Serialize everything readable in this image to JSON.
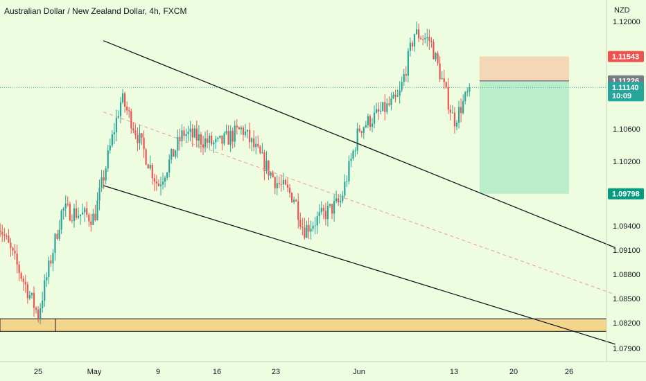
{
  "header": {
    "title": "Australian Dollar / New Zealand Dollar, 4h, FXCM"
  },
  "price_axis": {
    "currency": "NZD",
    "ticks": [
      "1.12000",
      "1.10600",
      "1.10200",
      "1.09400",
      "1.09100",
      "1.08800",
      "1.08500",
      "1.08200",
      "1.07900"
    ]
  },
  "tags": [
    {
      "value": "1.11543",
      "color": "#ef5350"
    },
    {
      "value": "1.11226",
      "color": "#787b86"
    },
    {
      "value": "1.11140",
      "time": "10:09",
      "color": "#26a69a"
    },
    {
      "value": "1.09798",
      "color": "#089981"
    }
  ],
  "time_axis": {
    "labels": [
      "25",
      "May",
      "9",
      "16",
      "23",
      "Jun",
      "13",
      "20",
      "26"
    ]
  },
  "colors": {
    "background": "#eefcdf",
    "up": "#26a69a",
    "down": "#ef5350",
    "stop_zone": "#f3d3b3",
    "target_zone": "#b5ebc8",
    "support_zone": "#f3d68c"
  },
  "chart_data": {
    "type": "candlestick",
    "symbol": "AUDNZD",
    "interval": "4h",
    "source": "FXCM",
    "y_range": [
      1.0775,
      1.1225
    ],
    "last_price": 1.1114,
    "anchors": [
      {
        "date": "2022-04-20",
        "close": 1.0945
      },
      {
        "date": "2022-04-25",
        "close": 1.083
      },
      {
        "date": "2022-04-28",
        "close": 1.096
      },
      {
        "date": "2022-05-02",
        "close": 1.095
      },
      {
        "date": "2022-05-05",
        "close": 1.11
      },
      {
        "date": "2022-05-09",
        "close": 1.099
      },
      {
        "date": "2022-05-12",
        "close": 1.1055
      },
      {
        "date": "2022-05-16",
        "close": 1.104
      },
      {
        "date": "2022-05-19",
        "close": 1.106
      },
      {
        "date": "2022-05-23",
        "close": 1.0995
      },
      {
        "date": "2022-05-25",
        "close": 1.0975
      },
      {
        "date": "2022-05-26",
        "close": 1.0935
      },
      {
        "date": "2022-05-30",
        "close": 1.097
      },
      {
        "date": "2022-06-01",
        "close": 1.106
      },
      {
        "date": "2022-06-06",
        "close": 1.11
      },
      {
        "date": "2022-06-08",
        "close": 1.1185
      },
      {
        "date": "2022-06-10",
        "close": 1.1175
      },
      {
        "date": "2022-06-13",
        "close": 1.107
      },
      {
        "date": "2022-06-15",
        "close": 1.1114
      }
    ],
    "channel": {
      "upper": [
        {
          "date": "2022-05-03",
          "price": 1.1175
        },
        {
          "date": "2022-07-01",
          "price": 1.0913
        }
      ],
      "lower": [
        {
          "date": "2022-05-03",
          "price": 1.099
        },
        {
          "date": "2022-07-01",
          "price": 1.0795
        }
      ],
      "midline": [
        {
          "date": "2022-05-03",
          "price": 1.1082
        },
        {
          "date": "2022-07-01",
          "price": 1.0855
        }
      ]
    },
    "support_zone": {
      "from": 1.081,
      "to": 1.0825
    },
    "position": {
      "side": "short",
      "entry": 1.11226,
      "stop": 1.11543,
      "target": 1.09798,
      "start": "2022-06-16",
      "end": "2022-06-26"
    }
  }
}
